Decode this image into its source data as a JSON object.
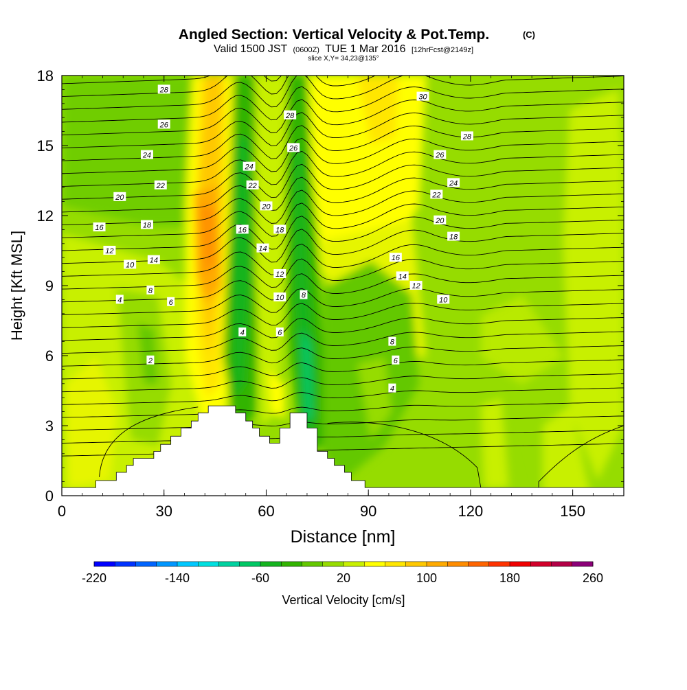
{
  "chart_data": {
    "type": "heatmap",
    "title": "Angled Section: Vertical Velocity & Pot.Temp.",
    "title_suffix": "(C)",
    "subtitle_valid": "Valid 1500 JST",
    "subtitle_utc": "(0600Z)",
    "subtitle_date": "TUE 1 Mar 2016",
    "subtitle_fcst": "[12hrFcst@2149z]",
    "slice_label": "slice X,Y= 34,23@135°",
    "xlabel": "Distance [nm]",
    "ylabel": "Height [Kft MSL]",
    "xlim": [
      0,
      165
    ],
    "ylim": [
      0,
      18
    ],
    "xticks": [
      0,
      30,
      60,
      90,
      120,
      150
    ],
    "yticks": [
      0,
      3,
      6,
      9,
      12,
      15,
      18
    ],
    "colorbar": {
      "label": "Vertical Velocity [cm/s]",
      "min": -220,
      "max": 260,
      "step": 20,
      "tick_labels": [
        -220,
        -140,
        -60,
        20,
        100,
        180,
        260
      ],
      "colors": [
        "#0000ff",
        "#0032ff",
        "#0064ff",
        "#0096ff",
        "#00c8ff",
        "#00e0e0",
        "#00d2a0",
        "#00c864",
        "#14b41e",
        "#32b400",
        "#64c800",
        "#96dc00",
        "#c8f000",
        "#ffff00",
        "#ffe600",
        "#ffc800",
        "#ffaa00",
        "#ff8c00",
        "#ff6400",
        "#ff3200",
        "#f00000",
        "#d2002a",
        "#b40046",
        "#8c0078",
        "#640096"
      ]
    },
    "contour_labels": {
      "potential_temperature_c": [
        2,
        4,
        6,
        8,
        10,
        12,
        14,
        16,
        18,
        20,
        22,
        24,
        26,
        28,
        30
      ]
    },
    "terrain": [
      [
        0,
        0.35
      ],
      [
        10,
        0.35
      ],
      [
        10,
        0.65
      ],
      [
        16,
        0.65
      ],
      [
        16,
        1
      ],
      [
        19,
        1
      ],
      [
        19,
        1.3
      ],
      [
        21,
        1.3
      ],
      [
        21,
        1.6
      ],
      [
        27,
        1.6
      ],
      [
        27,
        1.9
      ],
      [
        29,
        1.9
      ],
      [
        29,
        2.2
      ],
      [
        32,
        2.2
      ],
      [
        32,
        2.55
      ],
      [
        35,
        2.55
      ],
      [
        35,
        2.9
      ],
      [
        38,
        2.9
      ],
      [
        38,
        3.2
      ],
      [
        40,
        3.2
      ],
      [
        40,
        3.55
      ],
      [
        43,
        3.55
      ],
      [
        43,
        3.85
      ],
      [
        51,
        3.85
      ],
      [
        51,
        3.55
      ],
      [
        54,
        3.55
      ],
      [
        54,
        3.2
      ],
      [
        56,
        3.2
      ],
      [
        56,
        2.9
      ],
      [
        58,
        2.9
      ],
      [
        58,
        2.55
      ],
      [
        61,
        2.55
      ],
      [
        61,
        2.25
      ],
      [
        64,
        2.25
      ],
      [
        64,
        2.9
      ],
      [
        67,
        2.9
      ],
      [
        67,
        3.55
      ],
      [
        72,
        3.55
      ],
      [
        72,
        2.9
      ],
      [
        75,
        2.9
      ],
      [
        75,
        1.9
      ],
      [
        78,
        1.9
      ],
      [
        78,
        1.6
      ],
      [
        80,
        1.6
      ],
      [
        80,
        1.3
      ],
      [
        83,
        1.3
      ],
      [
        83,
        1
      ],
      [
        85,
        1
      ],
      [
        85,
        0.65
      ],
      [
        89,
        0.65
      ],
      [
        89,
        0.35
      ],
      [
        165,
        0.35
      ]
    ]
  }
}
